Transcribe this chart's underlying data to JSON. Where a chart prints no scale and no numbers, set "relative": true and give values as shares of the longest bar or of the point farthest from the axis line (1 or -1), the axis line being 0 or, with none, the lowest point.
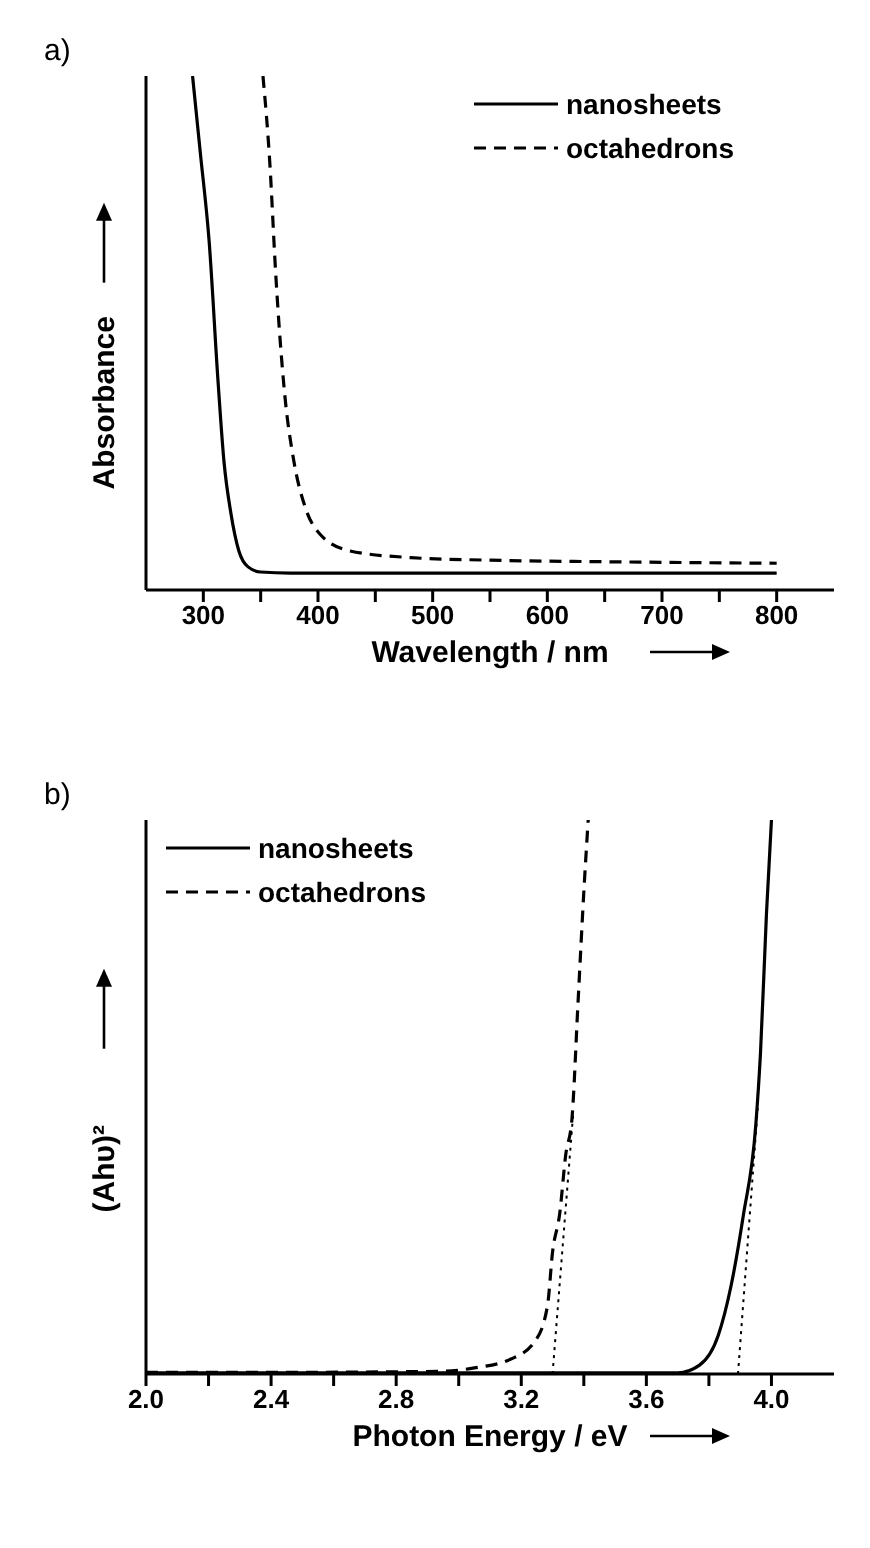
{
  "chart_data": [
    {
      "type": "line",
      "title": "a)",
      "xlabel": "Wavelength / nm",
      "ylabel": "Absorbance",
      "relative": true,
      "xlim": [
        250,
        850
      ],
      "xticks": [
        300,
        {
          "value": 350,
          "label": null
        },
        400,
        {
          "value": 450,
          "label": null
        },
        500,
        {
          "value": 550,
          "label": null
        },
        600,
        {
          "value": 650,
          "label": null
        },
        700,
        {
          "value": 750,
          "label": null
        },
        800
      ],
      "legend": "top right",
      "marker": "none",
      "series": [
        {
          "name": "nanosheets",
          "color": "#000000",
          "line_style": "solid",
          "x": [
            290.6,
            297.4,
            305,
            313,
            318,
            324,
            331,
            339,
            350,
            376,
            450,
            550,
            650,
            800
          ],
          "values": [
            1.0,
            0.85,
            0.68,
            0.4,
            0.25,
            0.15,
            0.076,
            0.045,
            0.035,
            0.033,
            0.033,
            0.033,
            0.033,
            0.033
          ]
        },
        {
          "name": "octahedrons",
          "color": "#000000",
          "line_style": "dashed",
          "x": [
            352,
            358,
            363,
            371,
            379,
            389,
            402,
            428,
            481,
            550,
            650,
            800
          ],
          "values": [
            1.0,
            0.83,
            0.62,
            0.38,
            0.25,
            0.16,
            0.108,
            0.076,
            0.063,
            0.058,
            0.055,
            0.052
          ]
        }
      ]
    },
    {
      "type": "line",
      "title": "b)",
      "xlabel": "Photon Energy / eV",
      "ylabel": "(Ahυ)²",
      "relative": true,
      "xlim": [
        2.0,
        4.2
      ],
      "xticks": [
        "2.0",
        {
          "value": 2.2,
          "label": null
        },
        2.4,
        {
          "value": 2.6,
          "label": null
        },
        2.8,
        {
          "value": 3.0,
          "label": null
        },
        3.2,
        {
          "value": 3.4,
          "label": null
        },
        3.6,
        {
          "value": 3.8,
          "label": null
        },
        "4.0"
      ],
      "legend": "top left",
      "marker": "none",
      "series": [
        {
          "name": "nanosheets",
          "color": "#000000",
          "line_style": "solid",
          "x": [
            2.0,
            2.5,
            3.0,
            3.5,
            3.7,
            3.77,
            3.83,
            3.87,
            3.91,
            3.95,
            3.965,
            3.984,
            4.0
          ],
          "values": [
            0.002,
            0.002,
            0.002,
            0.002,
            0.002,
            0.016,
            0.07,
            0.157,
            0.286,
            0.45,
            0.58,
            0.83,
            1.0
          ]
        },
        {
          "name": "octahedrons",
          "color": "#000000",
          "line_style": "dashed",
          "x": [
            2.0,
            2.4,
            2.8,
            2.953,
            3.05,
            3.167,
            3.245,
            3.284,
            3.3,
            3.323,
            3.342,
            3.362,
            3.381,
            3.401,
            3.414
          ],
          "values": [
            0.003,
            0.003,
            0.004,
            0.005,
            0.011,
            0.027,
            0.06,
            0.124,
            0.22,
            0.29,
            0.395,
            0.46,
            0.665,
            0.88,
            1.0
          ]
        },
        {
          "color": "#000000",
          "line_style": "dotted",
          "x": [
            3.3,
            3.366
          ],
          "values": [
            0.0,
            0.47
          ]
        },
        {
          "color": "#000000",
          "line_style": "dotted",
          "x": [
            3.893,
            3.956
          ],
          "values": [
            0.0,
            0.48
          ]
        }
      ]
    }
  ]
}
